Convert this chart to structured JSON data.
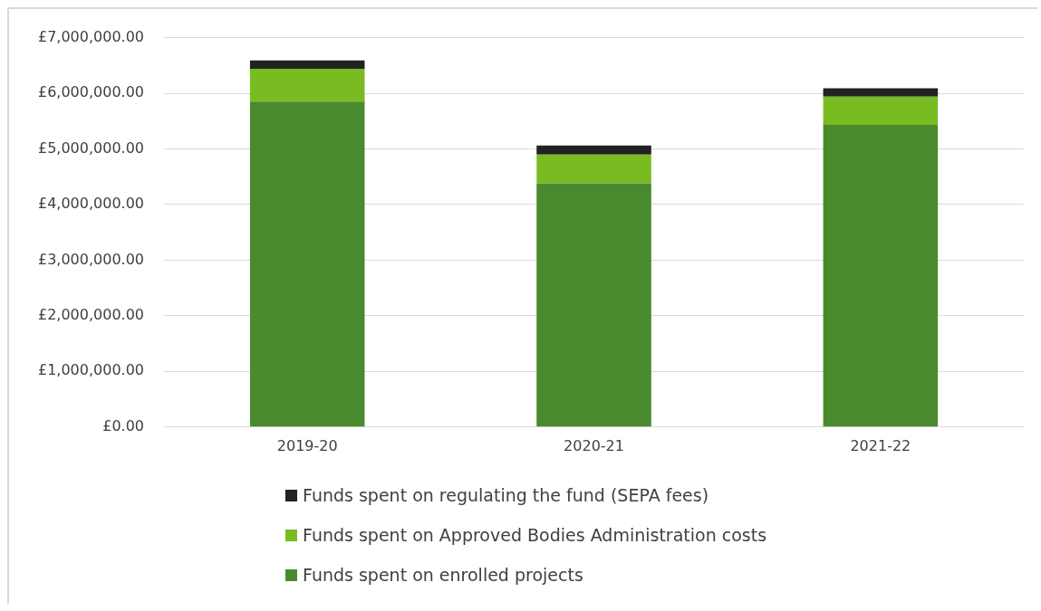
{
  "chart_data": {
    "type": "bar",
    "stacked": true,
    "categories": [
      "2019-20",
      "2020-21",
      "2021-22"
    ],
    "series": [
      {
        "name": "Funds spent on enrolled projects",
        "color": "#4a8a2e",
        "values": [
          5850000,
          4380000,
          5430000
        ]
      },
      {
        "name": "Funds spent on Approved Bodies Administration costs",
        "color": "#78bc22",
        "values": [
          590000,
          520000,
          510000
        ]
      },
      {
        "name": "Funds spent on regulating the fund (SEPA fees)",
        "color": "#222222",
        "values": [
          150000,
          160000,
          150000
        ]
      }
    ],
    "ylim": [
      0,
      7000000
    ],
    "yticks": [
      {
        "value": 0,
        "label": "£0.00"
      },
      {
        "value": 1000000,
        "label": "£1,000,000.00"
      },
      {
        "value": 2000000,
        "label": "£2,000,000.00"
      },
      {
        "value": 3000000,
        "label": "£3,000,000.00"
      },
      {
        "value": 4000000,
        "label": "£4,000,000.00"
      },
      {
        "value": 5000000,
        "label": "£5,000,000.00"
      },
      {
        "value": 6000000,
        "label": "£6,000,000.00"
      },
      {
        "value": 7000000,
        "label": "£7,000,000.00"
      }
    ],
    "grid": "y",
    "legend": "bottom"
  }
}
